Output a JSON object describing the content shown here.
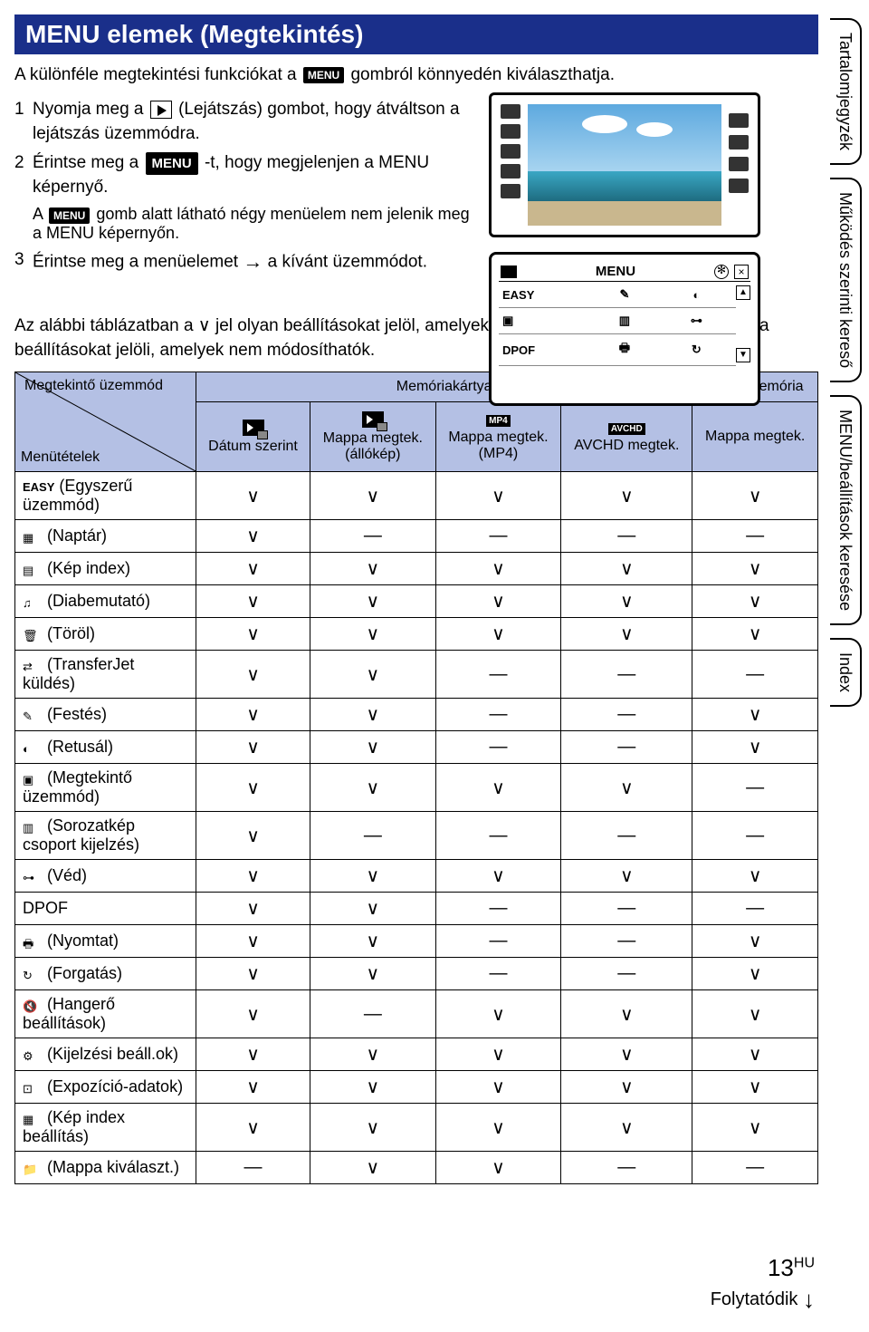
{
  "title": "MENU elemek (Megtekintés)",
  "intro_before": "A különféle megtekintési funkciókat a ",
  "intro_after": " gombról könnyedén kiválaszthatja.",
  "menu_label": "MENU",
  "steps": {
    "s1_before": "Nyomja meg a ",
    "s1_after": " (Lejátszás) gombot, hogy átváltson a lejátszás üzemmódra.",
    "s2_before": "Érintse meg a ",
    "s2_mid": "-t, hogy megjelenjen a MENU képernyő.",
    "s2_sub_before": "A ",
    "s2_sub_after": " gomb alatt látható négy menüelem nem jelenik meg a MENU képernyőn.",
    "s3_before": "Érintse meg a menüelemet ",
    "s3_after": " a kívánt üzemmódot."
  },
  "illus2": {
    "menu": "MENU",
    "easy": "EASY",
    "dpof": "DPOF"
  },
  "explain": "Az alábbi táblázatban a ∨ jel olyan beállításokat jelöl, amelyek módosíthatók, a – jel pedig azokat a beállításokat jelöli, amelyek nem módosíthatók.",
  "table": {
    "diag_top": "Megtekintő üzemmód",
    "diag_bottom": "Menütételek",
    "group_mem": "Memóriakártya",
    "group_int": "Belső memória",
    "cols": [
      "Dátum szerint",
      "Mappa megtek. (állókép)",
      "Mappa megtek. (MP4)",
      "AVCHD megtek.",
      "Mappa megtek."
    ],
    "col_badges": [
      "",
      "",
      "MP4",
      "AVCHD",
      ""
    ],
    "rows": [
      {
        "icon": "EASY",
        "label": "(Egyszerű üzemmód)",
        "v": [
          "✓",
          "✓",
          "✓",
          "✓",
          "✓"
        ]
      },
      {
        "icon": "▦",
        "label": "(Naptár)",
        "v": [
          "✓",
          "—",
          "—",
          "—",
          "—"
        ]
      },
      {
        "icon": "▤",
        "label": "(Kép index)",
        "v": [
          "✓",
          "✓",
          "✓",
          "✓",
          "✓"
        ]
      },
      {
        "icon": "♫",
        "label": "(Diabemutató)",
        "v": [
          "✓",
          "✓",
          "✓",
          "✓",
          "✓"
        ]
      },
      {
        "icon": "🗑",
        "label": "(Töröl)",
        "v": [
          "✓",
          "✓",
          "✓",
          "✓",
          "✓"
        ]
      },
      {
        "icon": "⇄",
        "label": "(TransferJet küldés)",
        "v": [
          "✓",
          "✓",
          "—",
          "—",
          "—"
        ]
      },
      {
        "icon": "✎",
        "label": "(Festés)",
        "v": [
          "✓",
          "✓",
          "—",
          "—",
          "✓"
        ]
      },
      {
        "icon": "◐",
        "label": "(Retusál)",
        "v": [
          "✓",
          "✓",
          "—",
          "—",
          "✓"
        ]
      },
      {
        "icon": "▣",
        "label": "(Megtekintő üzemmód)",
        "v": [
          "✓",
          "✓",
          "✓",
          "✓",
          "—"
        ]
      },
      {
        "icon": "▥",
        "label": "(Sorozatkép csoport kijelzés)",
        "v": [
          "✓",
          "—",
          "—",
          "—",
          "—"
        ]
      },
      {
        "icon": "⊶",
        "label": "(Véd)",
        "v": [
          "✓",
          "✓",
          "✓",
          "✓",
          "✓"
        ]
      },
      {
        "icon": "",
        "label": "DPOF",
        "v": [
          "✓",
          "✓",
          "—",
          "—",
          "—"
        ]
      },
      {
        "icon": "🖶",
        "label": "(Nyomtat)",
        "v": [
          "✓",
          "✓",
          "—",
          "—",
          "✓"
        ]
      },
      {
        "icon": "↻",
        "label": "(Forgatás)",
        "v": [
          "✓",
          "✓",
          "—",
          "—",
          "✓"
        ]
      },
      {
        "icon": "🔇",
        "label": "(Hangerő beállítások)",
        "v": [
          "✓",
          "—",
          "✓",
          "✓",
          "✓"
        ]
      },
      {
        "icon": "⚙",
        "label": "(Kijelzési beáll.ok)",
        "v": [
          "✓",
          "✓",
          "✓",
          "✓",
          "✓"
        ]
      },
      {
        "icon": "⊡",
        "label": "(Expozíció-adatok)",
        "v": [
          "✓",
          "✓",
          "✓",
          "✓",
          "✓"
        ]
      },
      {
        "icon": "▦",
        "label": "(Kép index beállítás)",
        "v": [
          "✓",
          "✓",
          "✓",
          "✓",
          "✓"
        ]
      },
      {
        "icon": "📁",
        "label": "(Mappa kiválaszt.)",
        "v": [
          "—",
          "✓",
          "✓",
          "—",
          "—"
        ]
      }
    ]
  },
  "tabs": [
    "Tartalomjegyzék",
    "Működés szerinti kereső",
    "MENU/beállítások keresése",
    "Index"
  ],
  "page_num": "13",
  "page_sup": "HU",
  "cont": "Folytatódik"
}
